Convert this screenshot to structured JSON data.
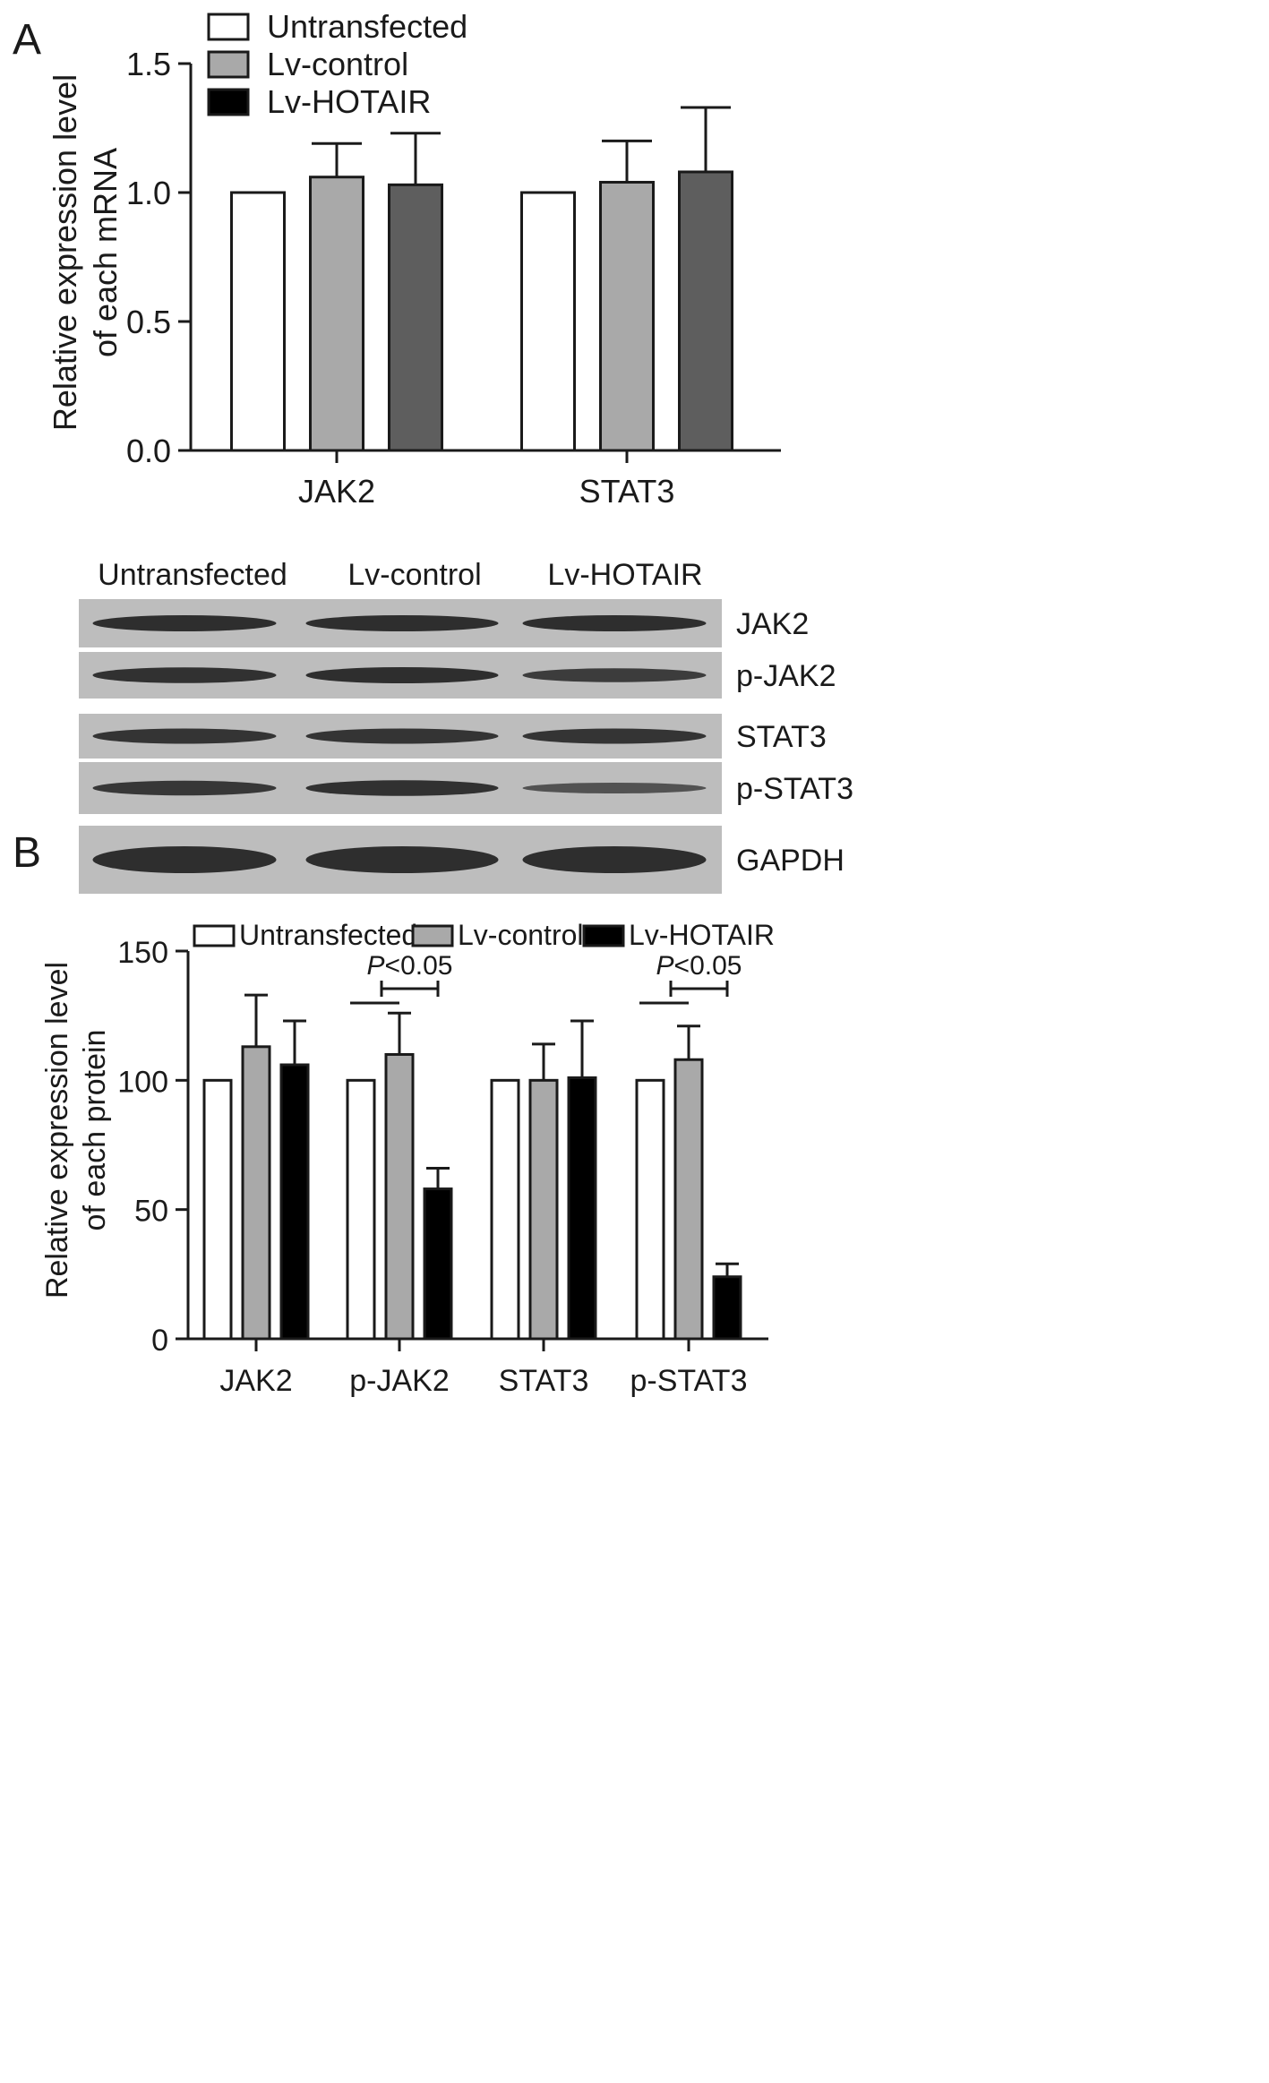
{
  "panels": {
    "a_label": "A",
    "b_label": "B"
  },
  "colors": {
    "untransfected_fill": "#ffffff",
    "lv_control_fill": "#a9a9a9",
    "lv_hotair_fill_a": "#5e5e5e",
    "lv_hotair_fill_b": "#000000",
    "legend_hotair_swatch": "#000000",
    "axis": "#1a1a1a",
    "blot_background": "#bdbdbd",
    "band": "#262626"
  },
  "blot": {
    "lane_labels": [
      "Untransfected",
      "Lv-control",
      "Lv-HOTAIR"
    ],
    "rows": [
      {
        "label": "JAK2",
        "band_intensity": [
          1.0,
          1.0,
          1.0
        ]
      },
      {
        "label": "p-JAK2",
        "band_intensity": [
          0.95,
          1.0,
          0.75
        ]
      },
      {
        "label": "STAT3",
        "band_intensity": [
          0.9,
          0.9,
          0.9
        ]
      },
      {
        "label": "p-STAT3",
        "band_intensity": [
          0.85,
          0.95,
          0.4
        ]
      },
      {
        "label": "GAPDH",
        "band_intensity": [
          1.0,
          1.0,
          1.0
        ]
      }
    ]
  },
  "chart_data": [
    {
      "type": "bar",
      "panel": "A",
      "title": "",
      "xlabel": "",
      "ylabel": [
        "Relative expression level",
        "of each mRNA"
      ],
      "ylim": [
        0,
        1.5
      ],
      "yticks": [
        "0.0",
        "0.5",
        "1.0",
        "1.5"
      ],
      "ytick_values": [
        0,
        0.5,
        1.0,
        1.5
      ],
      "categories": [
        "JAK2",
        "STAT3"
      ],
      "legend": [
        "Untransfected",
        "Lv-control",
        "Lv-HOTAIR"
      ],
      "legend_position": "top-left",
      "series": [
        {
          "name": "Untransfected",
          "values": [
            1.0,
            1.0
          ],
          "errors": [
            0,
            0
          ]
        },
        {
          "name": "Lv-control",
          "values": [
            1.06,
            1.04
          ],
          "errors": [
            0.13,
            0.16
          ]
        },
        {
          "name": "Lv-HOTAIR",
          "values": [
            1.03,
            1.08
          ],
          "errors": [
            0.2,
            0.25
          ]
        }
      ],
      "annotations": []
    },
    {
      "type": "bar",
      "panel": "B",
      "title": "",
      "xlabel": "",
      "ylabel": [
        "Relative expression level",
        "of each protein"
      ],
      "ylim": [
        0,
        150
      ],
      "yticks": [
        "0",
        "50",
        "100",
        "150"
      ],
      "ytick_values": [
        0,
        50,
        100,
        150
      ],
      "categories": [
        "JAK2",
        "p-JAK2",
        "STAT3",
        "p-STAT3"
      ],
      "legend": [
        "Untransfected",
        "Lv-control",
        "Lv-HOTAIR"
      ],
      "legend_position": "top",
      "series": [
        {
          "name": "Untransfected",
          "values": [
            100,
            100,
            100,
            100
          ],
          "errors": [
            0,
            0,
            0,
            0
          ]
        },
        {
          "name": "Lv-control",
          "values": [
            113,
            110,
            100,
            108
          ],
          "errors": [
            20,
            16,
            14,
            13
          ]
        },
        {
          "name": "Lv-HOTAIR",
          "values": [
            106,
            58,
            101,
            24
          ],
          "errors": [
            17,
            8,
            22,
            5
          ]
        }
      ],
      "annotations": [
        {
          "text_italic": "P",
          "text": "<0.05",
          "category_index": 1
        },
        {
          "text_italic": "P",
          "text": "<0.05",
          "category_index": 3
        }
      ]
    }
  ]
}
